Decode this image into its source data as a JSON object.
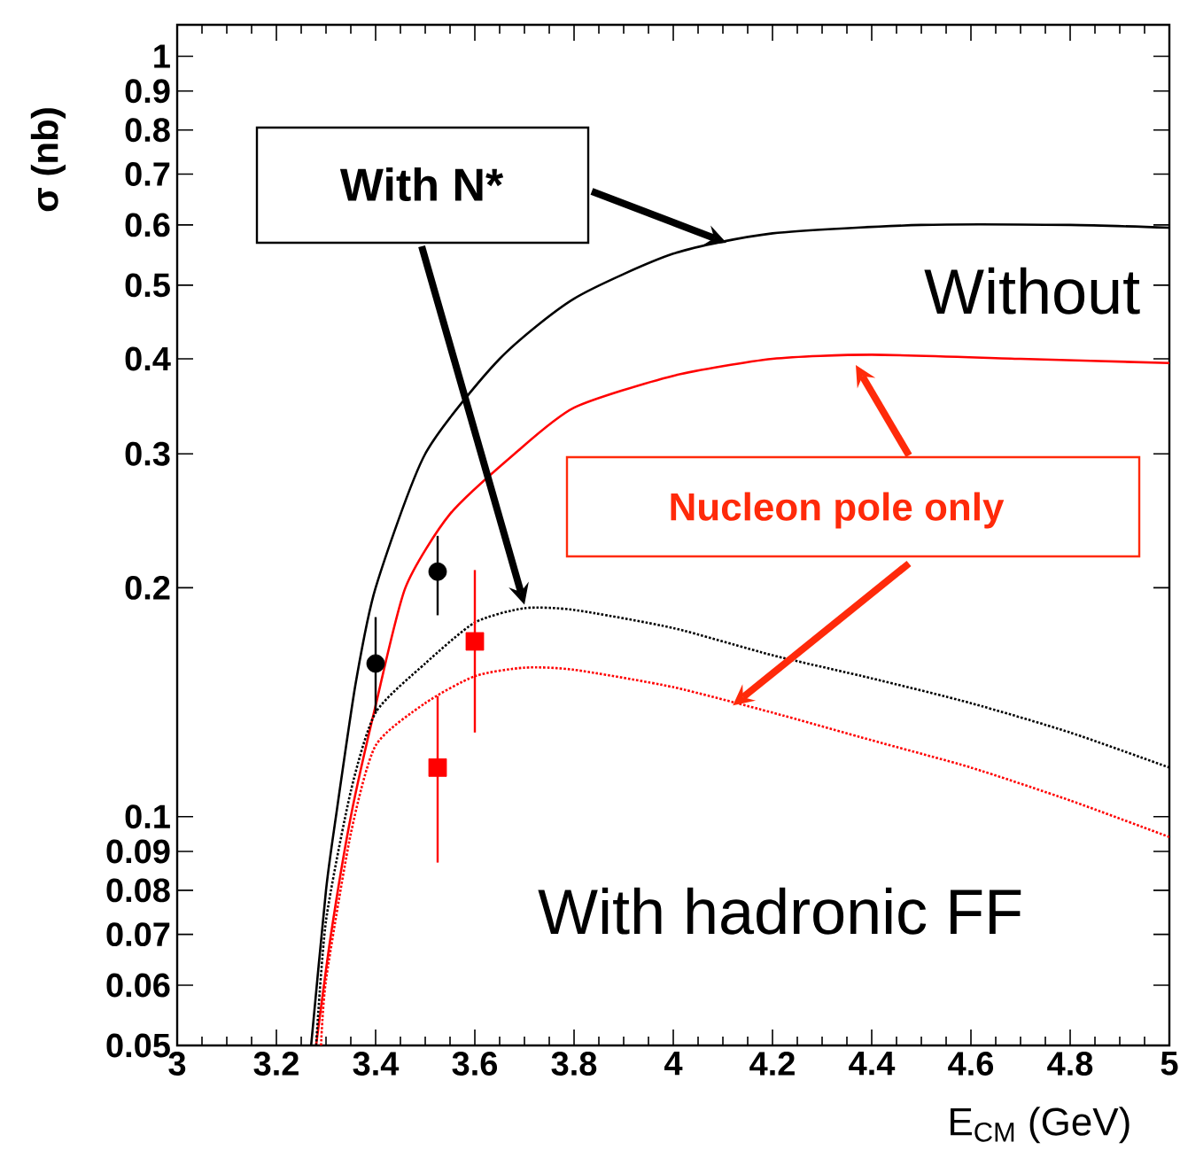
{
  "chart_data": {
    "type": "line",
    "xlabel": "E$_{CM}$ (GeV)",
    "ylabel": "σ (nb)",
    "log": "y",
    "xlim": [
      3,
      5
    ],
    "ylim": [
      0.05,
      1.1
    ],
    "xticks": [
      3,
      3.2,
      3.4,
      3.6,
      3.8,
      4,
      4.2,
      4.4,
      4.6,
      4.8,
      5
    ],
    "yticks": [
      0.05,
      0.06,
      0.07,
      0.08,
      0.09,
      0.1,
      0.2,
      0.3,
      0.4,
      0.5,
      0.6,
      0.7,
      0.8,
      0.9,
      1
    ],
    "annotations": [
      {
        "text": "With N*",
        "x": 3.7,
        "y": 0.19
      },
      {
        "text": "Nucleon pole only",
        "x": 4.12,
        "y": 0.14
      },
      "Without",
      "With hadronic  FF"
    ],
    "series": [
      {
        "color": "#000000",
        "line_style": "solid",
        "x": [
          3.27,
          3.3,
          3.32,
          3.36,
          3.4,
          3.5,
          3.65,
          3.8,
          4.0,
          4.2,
          4.5,
          4.8,
          5
        ],
        "values": [
          0.05,
          0.08,
          0.1,
          0.15,
          0.2,
          0.3,
          0.4,
          0.48,
          0.55,
          0.585,
          0.6,
          0.6,
          0.595
        ]
      },
      {
        "color": "#ff0000",
        "line_style": "solid",
        "x": [
          3.28,
          3.31,
          3.35,
          3.4,
          3.46,
          3.55,
          3.68,
          3.8,
          4.0,
          4.2,
          4.4,
          4.7,
          5
        ],
        "values": [
          0.05,
          0.07,
          0.1,
          0.14,
          0.2,
          0.25,
          0.3,
          0.345,
          0.38,
          0.4,
          0.405,
          0.4,
          0.395
        ]
      },
      {
        "color": "#000000",
        "line_style": "dotted",
        "x": [
          3.28,
          3.3,
          3.35,
          3.4,
          3.5,
          3.6,
          3.7,
          3.8,
          4.0,
          4.2,
          4.4,
          4.6,
          4.8,
          5
        ],
        "values": [
          0.05,
          0.073,
          0.108,
          0.137,
          0.159,
          0.18,
          0.188,
          0.187,
          0.177,
          0.163,
          0.152,
          0.141,
          0.129,
          0.116
        ]
      },
      {
        "color": "#ff0000",
        "line_style": "dotted",
        "x": [
          3.29,
          3.3,
          3.35,
          3.4,
          3.5,
          3.6,
          3.7,
          3.8,
          4.0,
          4.2,
          4.4,
          4.6,
          4.8,
          5
        ],
        "values": [
          0.05,
          0.061,
          0.095,
          0.124,
          0.141,
          0.153,
          0.157,
          0.156,
          0.148,
          0.137,
          0.126,
          0.116,
          0.105,
          0.094
        ]
      },
      {
        "type": "scatter",
        "marker": "circle",
        "color": "#000000",
        "x": [
          3.4,
          3.525
        ],
        "values": [
          0.159,
          0.21
        ],
        "errors": [
          [
            0.137,
            0.183
          ],
          [
            0.184,
            0.234
          ]
        ]
      },
      {
        "type": "scatter",
        "marker": "square",
        "color": "#ff0000",
        "x": [
          3.525,
          3.6
        ],
        "values": [
          0.116,
          0.17
        ],
        "errors": [
          [
            0.087,
            0.144
          ],
          [
            0.129,
            0.211
          ]
        ]
      }
    ]
  }
}
